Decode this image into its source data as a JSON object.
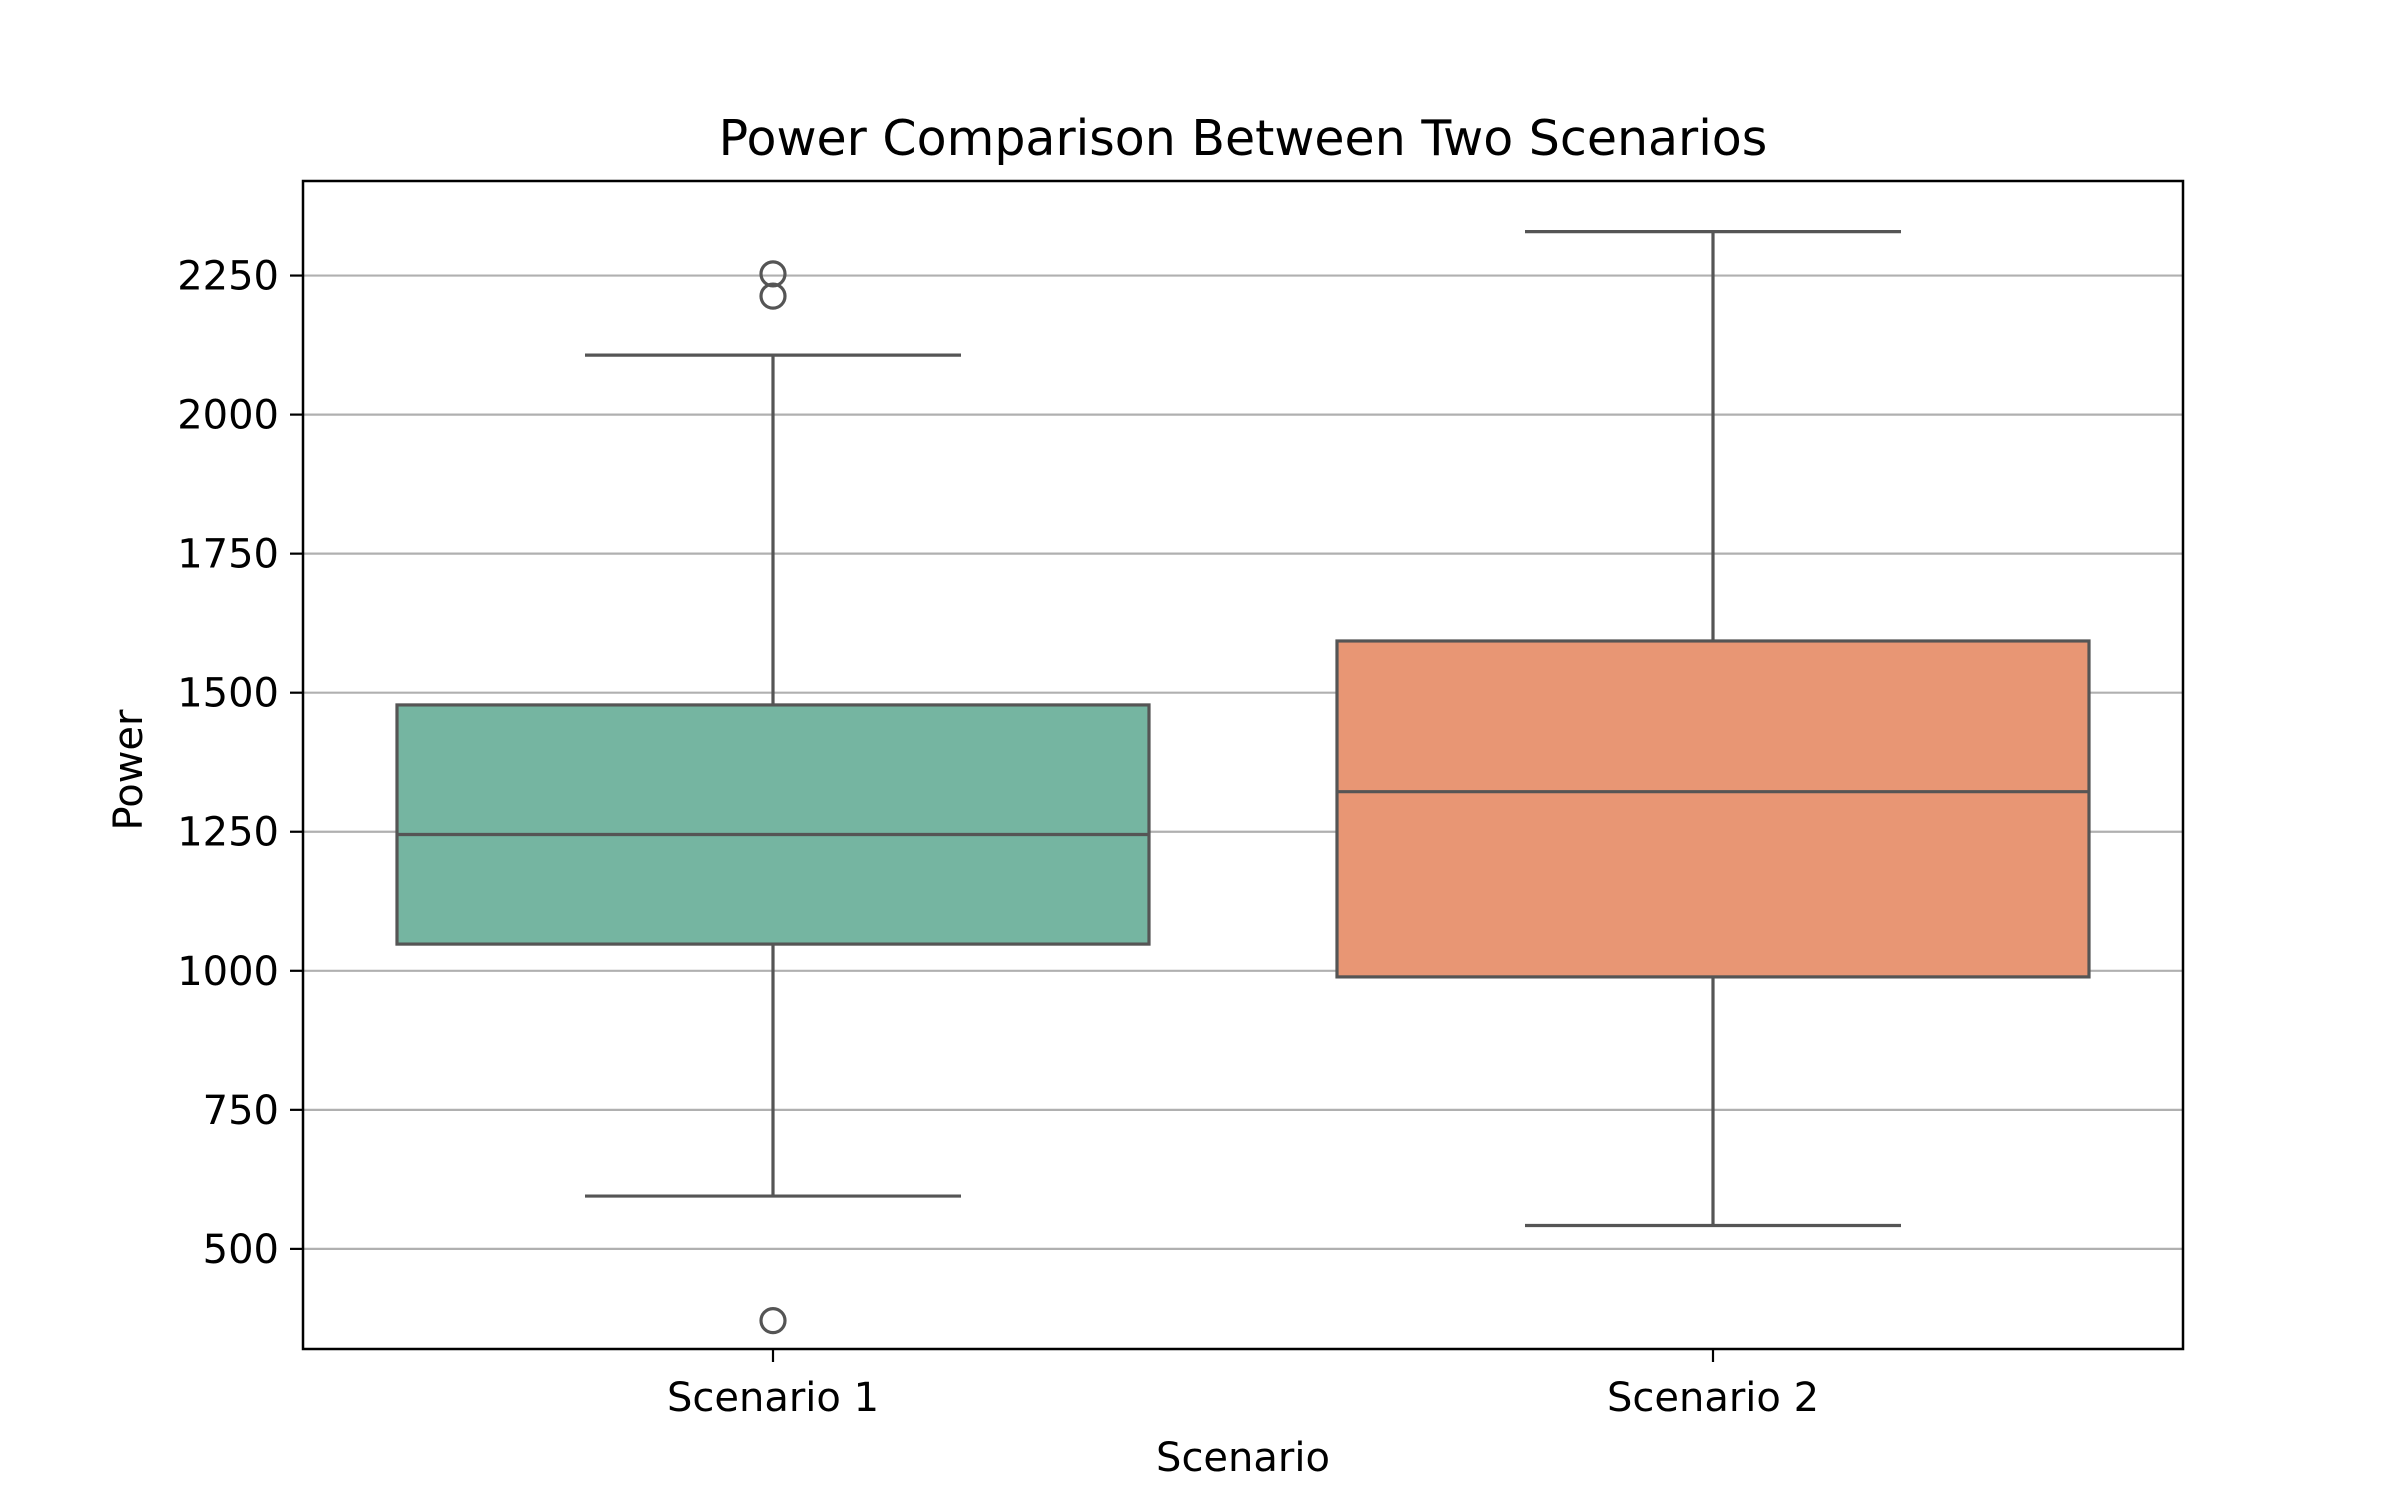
{
  "chart_data": {
    "type": "box",
    "title": "Power Comparison Between Two Scenarios",
    "xlabel": "Scenario",
    "ylabel": "Power",
    "ylim": [
      320,
      2420
    ],
    "yticks": [
      500,
      750,
      1000,
      1250,
      1500,
      1750,
      2000,
      2250
    ],
    "grid": "horizontal",
    "categories": [
      "Scenario 1",
      "Scenario 2"
    ],
    "boxes": [
      {
        "category": "Scenario 1",
        "whisker_low": 595,
        "q1": 1048,
        "median": 1245,
        "q3": 1478,
        "whisker_high": 2107,
        "outliers": [
          2253,
          2213,
          371
        ],
        "color": "#75b5a1"
      },
      {
        "category": "Scenario 2",
        "whisker_low": 542,
        "q1": 989,
        "median": 1322,
        "q3": 1593,
        "whisker_high": 2329,
        "outliers": [],
        "color": "#e89674"
      }
    ],
    "colors": {
      "edge": "#555555",
      "grid": "#b0b0b0",
      "frame": "#000000"
    }
  }
}
